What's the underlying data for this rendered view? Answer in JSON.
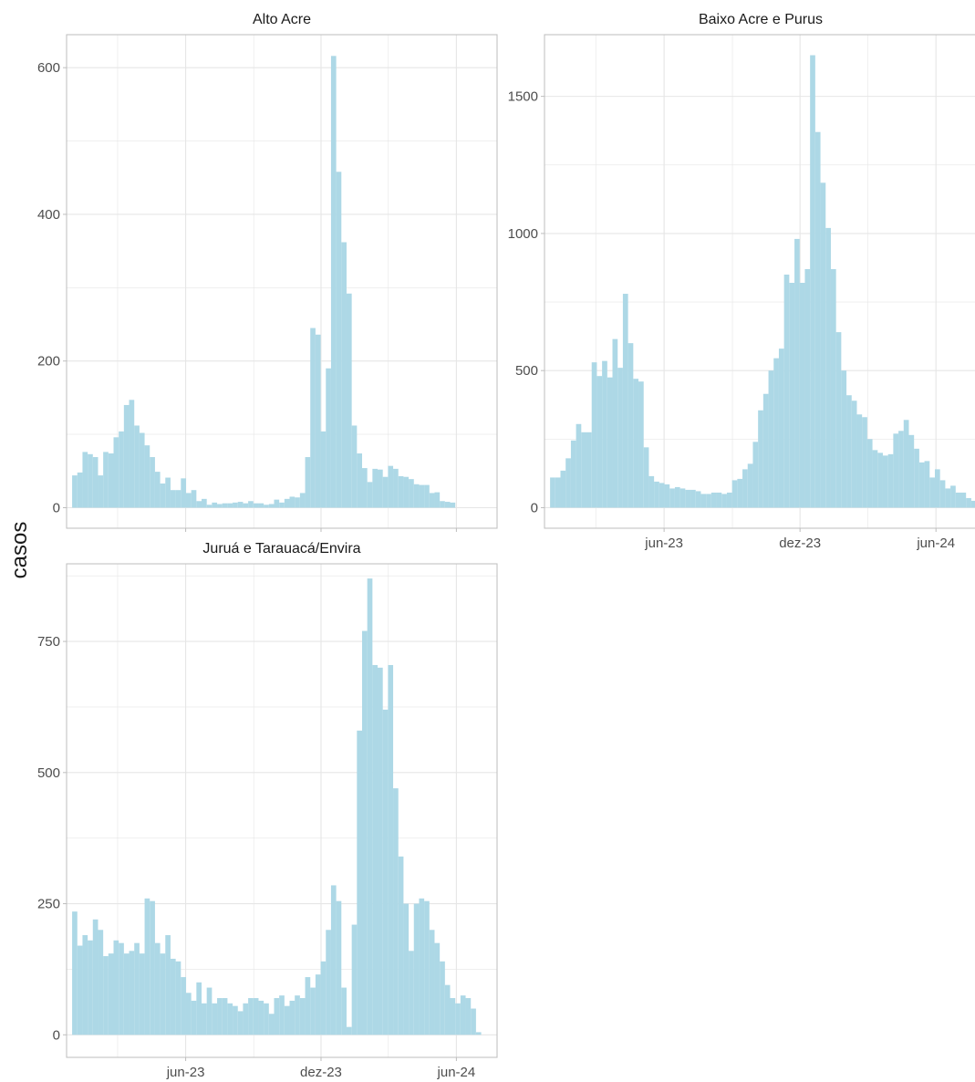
{
  "ylabel": "casos",
  "colors": {
    "bar": "#ADD8E6",
    "grid": "#E6E6E6",
    "panel_border": "#BDBDBD",
    "tick_text": "#4D4D4D",
    "strip_text": "#1A1A1A"
  },
  "chart_data": [
    {
      "type": "bar",
      "title": "Alto Acre",
      "x_date_start": "2023-01-02",
      "x_week_step": 1,
      "xlim": [
        "2022-12-22",
        "2024-07-26"
      ],
      "ylim": [
        -28,
        645
      ],
      "y_ticks": [
        0,
        200,
        400,
        600
      ],
      "x_ticks": [],
      "grid": true,
      "values": [
        44,
        48,
        76,
        73,
        69,
        44,
        76,
        74,
        96,
        104,
        140,
        147,
        112,
        102,
        85,
        69,
        49,
        33,
        41,
        24,
        24,
        40,
        20,
        24,
        9,
        12,
        4,
        7,
        5,
        6,
        6,
        7,
        8,
        6,
        9,
        6,
        6,
        4,
        5,
        11,
        7,
        12,
        15,
        14,
        20,
        69,
        245,
        236,
        104,
        190,
        616,
        458,
        362,
        292,
        112,
        74,
        54,
        35,
        53,
        52,
        42,
        57,
        53,
        43,
        42,
        39,
        32,
        31,
        31,
        20,
        21,
        9,
        8,
        7
      ]
    },
    {
      "type": "bar",
      "title": "Baixo Acre e Purus",
      "x_date_start": "2023-01-02",
      "x_week_step": 1,
      "xlim": [
        "2022-12-22",
        "2024-07-26"
      ],
      "ylim": [
        -75,
        1725
      ],
      "y_ticks": [
        0,
        500,
        1000,
        1500
      ],
      "x_ticks": [
        "jun-23",
        "dez-23",
        "jun-24"
      ],
      "grid": true,
      "values": [
        110,
        110,
        135,
        180,
        245,
        305,
        275,
        275,
        530,
        480,
        535,
        475,
        615,
        510,
        780,
        600,
        470,
        460,
        220,
        115,
        95,
        90,
        85,
        70,
        75,
        70,
        65,
        65,
        60,
        50,
        50,
        55,
        55,
        50,
        55,
        100,
        105,
        140,
        160,
        240,
        355,
        415,
        500,
        545,
        580,
        850,
        820,
        980,
        820,
        870,
        1650,
        1370,
        1185,
        1020,
        870,
        640,
        500,
        410,
        390,
        340,
        330,
        250,
        210,
        200,
        190,
        195,
        270,
        280,
        320,
        265,
        215,
        165,
        170,
        110,
        140,
        100,
        70,
        80,
        55,
        55,
        35,
        25
      ]
    },
    {
      "type": "bar",
      "title": "Juruá e Tarauacá/Envira",
      "x_date_start": "2023-01-02",
      "x_week_step": 1,
      "xlim": [
        "2022-12-22",
        "2024-07-26"
      ],
      "ylim": [
        -43,
        898
      ],
      "y_ticks": [
        0,
        250,
        500,
        750
      ],
      "x_ticks": [
        "jun-23",
        "dez-23",
        "jun-24"
      ],
      "grid": true,
      "values": [
        235,
        170,
        190,
        180,
        220,
        200,
        150,
        155,
        180,
        175,
        155,
        160,
        175,
        155,
        260,
        255,
        175,
        155,
        190,
        145,
        140,
        110,
        80,
        65,
        100,
        60,
        90,
        60,
        70,
        70,
        60,
        55,
        45,
        60,
        70,
        70,
        65,
        60,
        40,
        70,
        75,
        55,
        65,
        75,
        70,
        110,
        90,
        115,
        140,
        200,
        285,
        255,
        90,
        15,
        210,
        580,
        770,
        870,
        705,
        700,
        620,
        705,
        470,
        340,
        250,
        160,
        250,
        260,
        255,
        200,
        175,
        140,
        95,
        70,
        60,
        75,
        70,
        50,
        5,
        0
      ]
    }
  ]
}
